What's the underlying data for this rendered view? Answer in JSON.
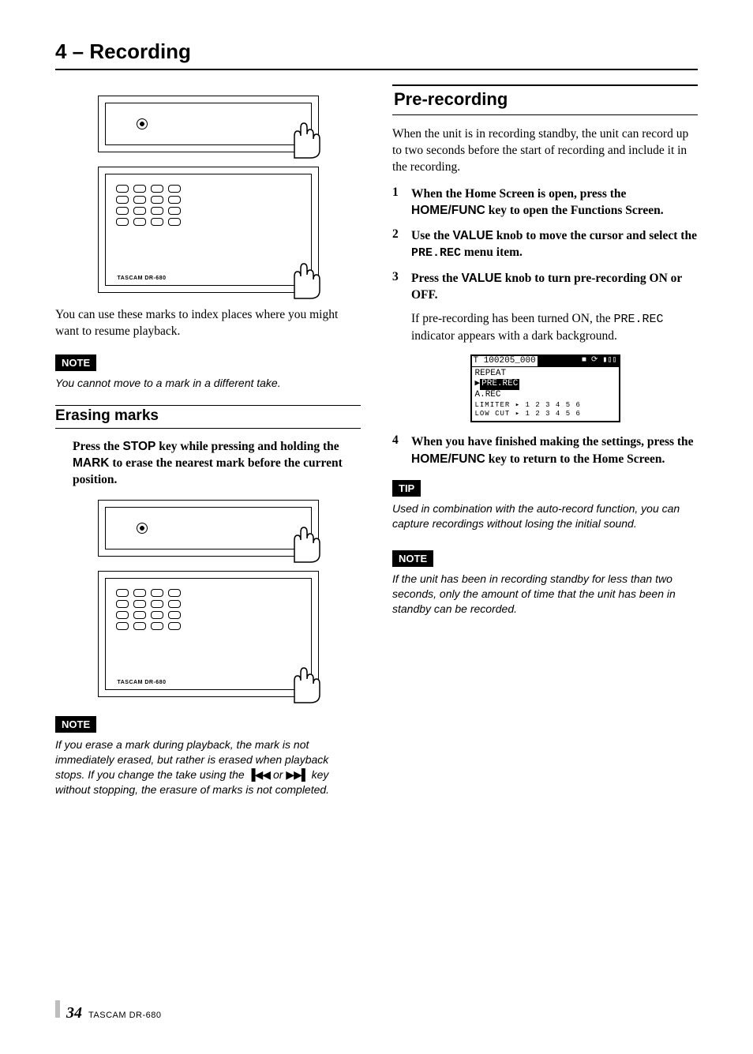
{
  "chapter_title": "4 – Recording",
  "left": {
    "device_model_label": "TASCAM  DR-680",
    "marks_paragraph": "You can use these marks to index places where you might want to resume playback.",
    "note1_label": "NOTE",
    "note1_text": "You cannot move to a mark in a different take.",
    "erasing_heading": "Erasing marks",
    "erasing_instruction_pre": "Press the ",
    "erasing_key1": "STOP",
    "erasing_instruction_mid": " key while pressing and holding the ",
    "erasing_key2": "MARK",
    "erasing_instruction_post": " to erase the nearest mark before the current position.",
    "note2_label": "NOTE",
    "note2_pre": "If you erase a mark during playback, the mark is not immediately erased, but rather is erased when playback stops. If you change the take using the ",
    "note2_icon_prev": "▐◀◀",
    "note2_or": " or ",
    "note2_icon_next": "▶▶▌",
    "note2_post": " key without stopping, the erasure of marks is not completed."
  },
  "right": {
    "heading": "Pre-recording",
    "intro": "When the unit is in recording standby, the unit can record up to two seconds before the start of recording and include it in the recording.",
    "steps": [
      {
        "num": "1",
        "parts": [
          {
            "t": "When the Home Screen is open, press the ",
            "cls": ""
          },
          {
            "t": "HOME/FUNC",
            "cls": "sans"
          },
          {
            "t": " key to open the Functions Screen.",
            "cls": ""
          }
        ]
      },
      {
        "num": "2",
        "parts": [
          {
            "t": "Use the ",
            "cls": ""
          },
          {
            "t": "VALUE",
            "cls": "sans"
          },
          {
            "t": " knob to move the cursor and select the ",
            "cls": ""
          },
          {
            "t": "PRE.REC",
            "cls": "mono"
          },
          {
            "t": " menu item.",
            "cls": ""
          }
        ]
      },
      {
        "num": "3",
        "parts": [
          {
            "t": "Press the ",
            "cls": ""
          },
          {
            "t": "VALUE",
            "cls": "sans"
          },
          {
            "t": " knob to turn pre-recording ON or OFF.",
            "cls": ""
          }
        ]
      }
    ],
    "after_step3_pre": "If pre-recording has been turned ON, the ",
    "after_step3_code": "PRE.REC",
    "after_step3_post": " indicator appears with a dark background.",
    "lcd": {
      "title_left": "T 100205_000",
      "title_right": "■ ⟳ ▮▯▯",
      "line1": " REPEAT",
      "line2_marker": "▶",
      "line2_hl": "PRE.REC",
      "line3": " A.REC",
      "line4": " LIMITER ▸ 1 2 3 4 5 6",
      "line5": " LOW CUT ▸ 1 2 3 4 5 6"
    },
    "step4": {
      "num": "4",
      "parts": [
        {
          "t": "When you have finished making the settings, press the ",
          "cls": ""
        },
        {
          "t": "HOME/FUNC",
          "cls": "sans"
        },
        {
          "t": " key to return to the Home Screen.",
          "cls": ""
        }
      ]
    },
    "tip_label": "TIP",
    "tip_text": "Used in combination with the auto-record function, you can capture recordings without losing the initial sound.",
    "note_label": "NOTE",
    "note_text": "If the unit has been in recording standby for less than two seconds, only the amount of time that the unit has been in standby can be recorded."
  },
  "footer": {
    "page": "34",
    "product": "TASCAM  DR-680"
  }
}
